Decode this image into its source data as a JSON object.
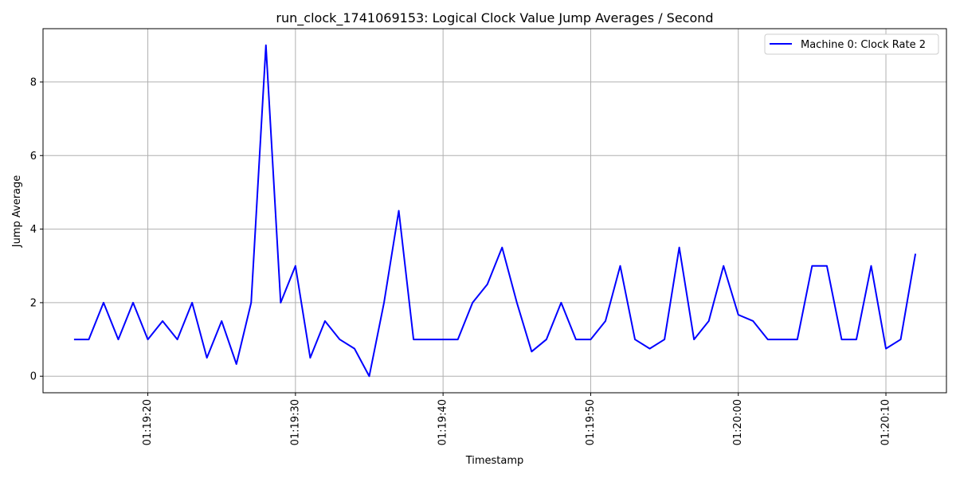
{
  "chart_data": {
    "type": "line",
    "title": "run_clock_1741069153: Logical Clock Value Jump Averages / Second",
    "xlabel": "Timestamp",
    "ylabel": "Jump Average",
    "xlim": [
      "01:19:12.9",
      "01:20:14.1"
    ],
    "ylim": [
      -0.45,
      9.45
    ],
    "grid": true,
    "legend_position": "top-right",
    "y_ticks": [
      0,
      2,
      4,
      6,
      8
    ],
    "x_ticks": [
      {
        "t": "01:19:20",
        "label": "01:19:20"
      },
      {
        "t": "01:19:30",
        "label": "01:19:30"
      },
      {
        "t": "01:19:40",
        "label": "01:19:40"
      },
      {
        "t": "01:19:50",
        "label": "01:19:50"
      },
      {
        "t": "01:20:00",
        "label": "01:20:00"
      },
      {
        "t": "01:20:10",
        "label": "01:20:10"
      }
    ],
    "series": [
      {
        "name": "Machine 0: Clock Rate 2",
        "color": "#0000ff",
        "x": [
          "01:19:15",
          "01:19:16",
          "01:19:17",
          "01:19:18",
          "01:19:19",
          "01:19:20",
          "01:19:21",
          "01:19:22",
          "01:19:23",
          "01:19:24",
          "01:19:25",
          "01:19:26",
          "01:19:27",
          "01:19:28",
          "01:19:29",
          "01:19:30",
          "01:19:31",
          "01:19:32",
          "01:19:33",
          "01:19:34",
          "01:19:35",
          "01:19:36",
          "01:19:37",
          "01:19:38",
          "01:19:39",
          "01:19:40",
          "01:19:41",
          "01:19:42",
          "01:19:43",
          "01:19:44",
          "01:19:45",
          "01:19:46",
          "01:19:47",
          "01:19:48",
          "01:19:49",
          "01:19:50",
          "01:19:51",
          "01:19:52",
          "01:19:53",
          "01:19:54",
          "01:19:55",
          "01:19:56",
          "01:19:57",
          "01:19:58",
          "01:19:59",
          "01:20:00",
          "01:20:01",
          "01:20:02",
          "01:20:03",
          "01:20:04",
          "01:20:05",
          "01:20:06",
          "01:20:07",
          "01:20:08",
          "01:20:09",
          "01:20:10",
          "01:20:11",
          "01:20:12"
        ],
        "y": [
          1,
          1,
          2,
          1,
          2,
          1,
          1.5,
          1,
          2,
          0.5,
          1.5,
          0.33,
          2,
          9,
          2,
          3,
          0.5,
          1.5,
          1,
          0.75,
          0,
          2,
          4.5,
          1,
          1,
          1,
          1,
          2,
          2.5,
          3.5,
          2,
          0.67,
          1,
          2,
          1,
          1,
          1.5,
          3,
          1,
          0.75,
          1,
          3.5,
          1,
          1.5,
          3,
          1.67,
          1.5,
          1,
          1,
          1,
          3,
          3,
          1,
          1,
          3,
          0.75,
          1,
          3.33
        ]
      }
    ]
  }
}
